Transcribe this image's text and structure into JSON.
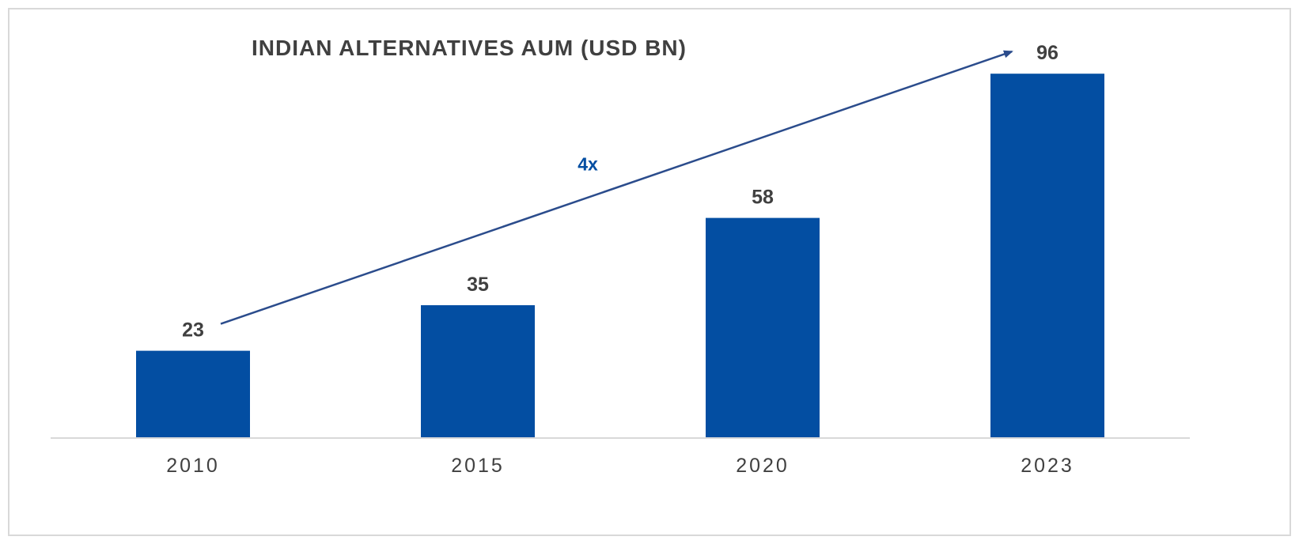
{
  "colors": {
    "bar": "#034ea2",
    "text": "#404040",
    "axis": "#d9d9d9",
    "arrow": "#2b4c8c",
    "annotation": "#034ea2"
  },
  "chart_data": {
    "type": "bar",
    "title": "INDIAN ALTERNATIVES AUM (USD BN)",
    "xlabel": "",
    "ylabel": "",
    "categories": [
      "2010",
      "2015",
      "2020",
      "2023"
    ],
    "values": [
      23,
      35,
      58,
      96
    ],
    "data_labels": [
      "23",
      "35",
      "58",
      "96"
    ],
    "ylim": [
      0,
      100
    ],
    "grid": false,
    "legend": "none",
    "annotation": {
      "text": "4x",
      "from_category": "2010",
      "to_category": "2023",
      "style": "arrow"
    }
  }
}
